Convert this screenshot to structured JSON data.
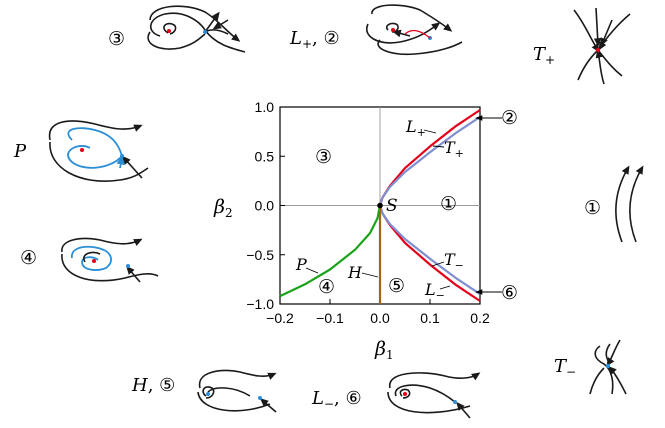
{
  "colors": {
    "L_plus": "#e3001b",
    "L_minus": "#e3001b",
    "T_plus": "#7f8fd0",
    "T_minus": "#7f8fd0",
    "P": "#1aa31a",
    "H": "#a0641a",
    "trajectory": "#1a1a1a",
    "homoclinic": "#2b8fd6"
  },
  "chart_data": {
    "type": "line",
    "xlabel": "β",
    "xlabel_sub": "1",
    "ylabel": "β",
    "ylabel_sub": "2",
    "xlim": [
      -0.2,
      0.2
    ],
    "ylim": [
      -1.0,
      1.0
    ],
    "xticks": [
      "−0.2",
      "−0.1",
      "0.0",
      "0.1",
      "0.2"
    ],
    "yticks": [
      "1.0",
      "0.5",
      "0.0",
      "−0.5",
      "−1.0"
    ],
    "xtick_values": [
      -0.2,
      -0.1,
      0.0,
      0.1,
      0.2
    ],
    "ytick_values": [
      1.0,
      0.5,
      0.0,
      -0.5,
      -1.0
    ],
    "series": [
      {
        "key": "L_plus",
        "x": [
          0,
          0.005,
          0.02,
          0.05,
          0.1,
          0.15,
          0.2
        ],
        "y": [
          0,
          0.08,
          0.2,
          0.38,
          0.6,
          0.8,
          0.97
        ]
      },
      {
        "key": "T_plus",
        "x": [
          0,
          0.005,
          0.02,
          0.05,
          0.1,
          0.15,
          0.2
        ],
        "y": [
          0,
          0.08,
          0.19,
          0.34,
          0.54,
          0.73,
          0.9
        ]
      },
      {
        "key": "L_minus",
        "x": [
          0,
          0.005,
          0.02,
          0.05,
          0.1,
          0.15,
          0.2
        ],
        "y": [
          0,
          -0.08,
          -0.2,
          -0.38,
          -0.6,
          -0.8,
          -0.97
        ]
      },
      {
        "key": "T_minus",
        "x": [
          0,
          0.005,
          0.02,
          0.05,
          0.1,
          0.15,
          0.2
        ],
        "y": [
          0,
          -0.08,
          -0.19,
          -0.34,
          -0.54,
          -0.73,
          -0.9
        ]
      },
      {
        "key": "P",
        "x": [
          0,
          -0.005,
          -0.02,
          -0.05,
          -0.1,
          -0.15,
          -0.2
        ],
        "y": [
          0,
          -0.13,
          -0.28,
          -0.45,
          -0.65,
          -0.8,
          -0.92
        ]
      },
      {
        "key": "H",
        "x": [
          0,
          0
        ],
        "y": [
          0,
          -1.0
        ]
      }
    ],
    "point": {
      "x": 0,
      "y": 0,
      "label": "S"
    },
    "curve_labels": [
      {
        "text": "L",
        "sub": "+"
      },
      {
        "text": "T",
        "sub": "+"
      },
      {
        "text": "T",
        "sub": "−"
      },
      {
        "text": "L",
        "sub": "−"
      },
      {
        "text": "P",
        "sub": ""
      },
      {
        "text": "H",
        "sub": ""
      }
    ],
    "region_labels": [
      "③",
      "①",
      "④",
      "⑤"
    ]
  },
  "callouts": {
    "top": "②",
    "bottom": "⑥"
  },
  "panels": {
    "p3": "③",
    "p_L_plus": {
      "text": "L",
      "sub": "+",
      "suffix": ", ②"
    },
    "p_T_plus": {
      "text": "T",
      "sub": "+"
    },
    "p_P": "P",
    "p4": "④",
    "p1": "①",
    "p_H": {
      "text": "H",
      "suffix": ", ⑤"
    },
    "p_L_minus": {
      "text": "L",
      "sub": "−",
      "suffix": ", ⑥"
    },
    "p_T_minus": {
      "text": "T",
      "sub": "−"
    }
  }
}
